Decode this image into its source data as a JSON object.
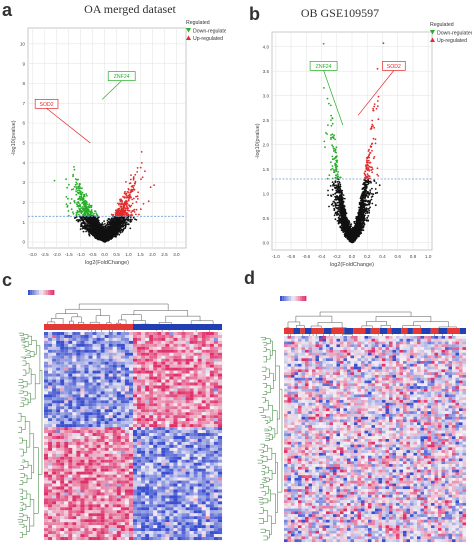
{
  "panels": {
    "a": {
      "letter": "a",
      "title": "OA merged dataset"
    },
    "b": {
      "letter": "b",
      "title": "OB GSE109597"
    },
    "c": {
      "letter": "c"
    },
    "d": {
      "letter": "d"
    }
  },
  "colors": {
    "down": "#27ae27",
    "up": "#e22b2b",
    "ns": "#111111",
    "threshold": "#6a9fd8",
    "heat_low": "#3a4fd0",
    "heat_mid": "#f4f0f4",
    "heat_high": "#e0306a",
    "group_red": "#e53935",
    "group_blue": "#1f3fb3"
  },
  "chart_data": [
    {
      "type": "scatter",
      "panel": "a",
      "title": "",
      "xlabel": "log2(FoldChange)",
      "ylabel": "-log10(pvalue)",
      "xlim": [
        -3.2,
        3.4
      ],
      "ylim": [
        -0.3,
        10.8
      ],
      "xticks": [
        "-3.0",
        "-2.5",
        "-2.0",
        "-1.5",
        "-1.0",
        "-0.5",
        "0.0",
        "0.5",
        "1.0",
        "1.5",
        "2.0",
        "2.5",
        "3.0"
      ],
      "xtick_values": [
        -3,
        -2.5,
        -2,
        -1.5,
        -1,
        -0.5,
        0,
        0.5,
        1,
        1.5,
        2,
        2.5,
        3
      ],
      "yticks": [
        "0",
        "1",
        "2",
        "3",
        "4",
        "5",
        "6",
        "7",
        "8",
        "9",
        "10"
      ],
      "ytick_values": [
        0,
        1,
        2,
        3,
        4,
        5,
        6,
        7,
        8,
        9,
        10
      ],
      "threshold_y": 1.3,
      "legend": {
        "title": "Regulated",
        "items": [
          "Down-regulated",
          "Up-regulated"
        ],
        "placement": "top-right"
      },
      "annotations": [
        {
          "label": "ZNF24",
          "x": -0.1,
          "y": 7.2,
          "box_x": 0.15,
          "box_y": 8.6
        },
        {
          "label": "SOD2",
          "x": -0.6,
          "y": 5.0,
          "box_x": -2.9,
          "box_y": 7.2
        }
      ],
      "grid": true
    },
    {
      "type": "scatter",
      "panel": "b",
      "title": "",
      "xlabel": "log2(FoldChange)",
      "ylabel": "-log10(pvalue)",
      "xlim": [
        -1.05,
        1.05
      ],
      "ylim": [
        -0.15,
        4.3
      ],
      "xticks": [
        "-1.0",
        "-0.8",
        "-0.6",
        "-0.4",
        "-0.2",
        "0.0",
        "0.2",
        "0.4",
        "0.6",
        "0.8",
        "1.0"
      ],
      "xtick_values": [
        -1,
        -0.8,
        -0.6,
        -0.4,
        -0.2,
        0,
        0.2,
        0.4,
        0.6,
        0.8,
        1
      ],
      "yticks": [
        "0.0",
        "0.5",
        "1.0",
        "1.5",
        "2.0",
        "2.5",
        "3.0",
        "3.5",
        "4.0"
      ],
      "ytick_values": [
        0,
        0.5,
        1,
        1.5,
        2,
        2.5,
        3,
        3.5,
        4
      ],
      "threshold_y": 1.3,
      "legend": {
        "title": "Regulated",
        "items": [
          "Down-regulated",
          "Up-regulated"
        ],
        "placement": "top-right"
      },
      "annotations": [
        {
          "label": "ZNF24",
          "x": -0.12,
          "y": 2.4,
          "box_x": -0.55,
          "box_y": 3.7
        },
        {
          "label": "SOD2",
          "x": 0.08,
          "y": 2.6,
          "box_x": 0.4,
          "box_y": 3.7
        }
      ],
      "grid": true
    },
    {
      "type": "heatmap",
      "panel": "c",
      "group_bar": {
        "left_color": "red",
        "right_color": "blue",
        "split_fraction": 0.5
      },
      "color_scale": [
        "blue",
        "white",
        "red"
      ]
    },
    {
      "type": "heatmap",
      "panel": "d",
      "group_bar": {
        "pattern": "alternating",
        "colors": [
          "red",
          "blue"
        ]
      },
      "color_scale": [
        "blue",
        "white",
        "red"
      ]
    }
  ]
}
